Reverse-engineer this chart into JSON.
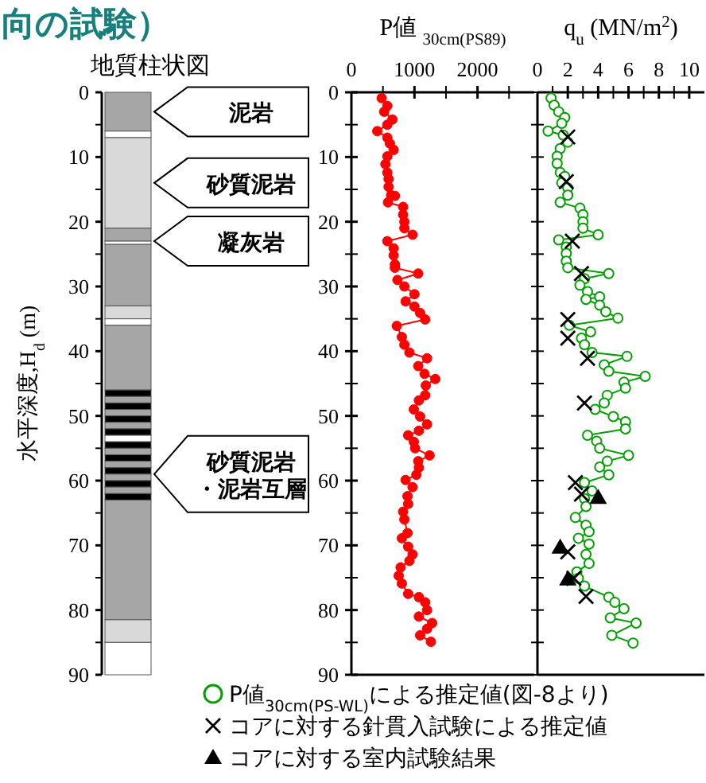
{
  "chart_data": [
    {
      "type": "bar",
      "stacked": true,
      "title": "地質柱状図",
      "ylabel": "水平深度,H$_{d}$ (m)",
      "categories": [
        null
      ],
      "ylim": [
        90,
        0
      ],
      "tick_labels": "y",
      "yticks": [
        0,
        {
          "value": 5,
          "label": null
        },
        10,
        {
          "value": 15,
          "label": null
        },
        20,
        {
          "value": 25,
          "label": null
        },
        30,
        {
          "value": 35,
          "label": null
        },
        40,
        {
          "value": 45,
          "label": null
        },
        50,
        {
          "value": 55,
          "label": null
        },
        60,
        {
          "value": 65,
          "label": null
        },
        70,
        {
          "value": 75,
          "label": null
        },
        80,
        {
          "value": 85,
          "label": null
        },
        90
      ],
      "series": [
        {
          "color": "#a6a6a6",
          "values": [
            6
          ]
        },
        {
          "color": "#ffffff",
          "values": [
            1
          ]
        },
        {
          "color": "#d9d9d9",
          "values": [
            14
          ]
        },
        {
          "color": "#a6a6a6",
          "values": [
            2
          ]
        },
        {
          "color": "#ffffff",
          "values": [
            0.5
          ]
        },
        {
          "color": "#a6a6a6",
          "values": [
            9.5
          ]
        },
        {
          "color": "#d9d9d9",
          "values": [
            2
          ]
        },
        {
          "color": "#ffffff",
          "values": [
            1
          ]
        },
        {
          "color": "#a6a6a6",
          "values": [
            10
          ]
        },
        {
          "color": "#000000",
          "values": [
            1
          ]
        },
        {
          "color": "#a6a6a6",
          "values": [
            1
          ]
        },
        {
          "color": "#000000",
          "values": [
            1
          ]
        },
        {
          "color": "#a6a6a6",
          "values": [
            1
          ]
        },
        {
          "color": "#000000",
          "values": [
            1
          ]
        },
        {
          "color": "#a6a6a6",
          "values": [
            1
          ]
        },
        {
          "color": "#000000",
          "values": [
            1
          ]
        },
        {
          "color": "#ffffff",
          "values": [
            1
          ]
        },
        {
          "color": "#000000",
          "values": [
            1
          ]
        },
        {
          "color": "#a6a6a6",
          "values": [
            1
          ]
        },
        {
          "color": "#000000",
          "values": [
            1
          ]
        },
        {
          "color": "#a6a6a6",
          "values": [
            1
          ]
        },
        {
          "color": "#000000",
          "values": [
            1
          ]
        },
        {
          "color": "#a6a6a6",
          "values": [
            1
          ]
        },
        {
          "color": "#000000",
          "values": [
            1
          ]
        },
        {
          "color": "#a6a6a6",
          "values": [
            1
          ]
        },
        {
          "color": "#000000",
          "values": [
            1
          ]
        },
        {
          "color": "#a6a6a6",
          "values": [
            18.5
          ]
        },
        {
          "color": "#d9d9d9",
          "values": [
            3.5
          ]
        },
        {
          "color": "#ffffff",
          "values": [
            5
          ]
        }
      ],
      "annotations": [
        "向の試験）",
        "泥岩",
        "砂質泥岩",
        "凝灰岩",
        "砂質泥岩・泥岩互層"
      ]
    },
    {
      "type": "line",
      "title": "P値 $_{30cm(PS89)}$",
      "xlim": [
        0,
        2900
      ],
      "ylim": [
        90,
        0
      ],
      "marker": "circle",
      "xticks": [
        0,
        {
          "value": 500,
          "label": null
        },
        1000,
        {
          "value": 1500,
          "label": null
        },
        2000,
        {
          "value": 2500,
          "label": null
        }
      ],
      "yticks": [
        0,
        {
          "value": 5,
          "label": null
        },
        10,
        {
          "value": 15,
          "label": null
        },
        20,
        {
          "value": 25,
          "label": null
        },
        30,
        {
          "value": 35,
          "label": null
        },
        40,
        {
          "value": 45,
          "label": null
        },
        50,
        {
          "value": 55,
          "label": null
        },
        60,
        {
          "value": 65,
          "label": null
        },
        70,
        {
          "value": 75,
          "label": null
        },
        80,
        {
          "value": 85,
          "label": null
        },
        90
      ],
      "series": [
        {
          "color": "#ff0000",
          "x": [
            480,
            570,
            520,
            650,
            570,
            410,
            570,
            610,
            670,
            570,
            540,
            570,
            590,
            590,
            630,
            690,
            580,
            820,
            820,
            840,
            840,
            970,
            570,
            670,
            670,
            690,
            690,
            1060,
            730,
            840,
            1000,
            860,
            1000,
            1090,
            1170,
            720,
            800,
            840,
            920,
            1200,
            1060,
            1160,
            1330,
            1180,
            1170,
            1070,
            990,
            1090,
            1200,
            1070,
            900,
            990,
            1010,
            1240,
            1060,
            1070,
            1030,
            860,
            970,
            890,
            900,
            820,
            840,
            890,
            800,
            900,
            970,
            920,
            780,
            750,
            800,
            900,
            1070,
            1170,
            1200,
            1070,
            1280,
            1200,
            1090,
            1260
          ],
          "values": [
            0.9,
            2.1,
            3,
            4.2,
            5,
            6,
            7,
            7.9,
            8.9,
            9.9,
            11.1,
            12.4,
            13.4,
            14.6,
            15.9,
            16,
            17,
            17.7,
            18.9,
            20,
            21,
            22,
            23,
            24.1,
            25.2,
            26.6,
            27.1,
            28,
            29,
            30,
            31.2,
            32.3,
            33.1,
            34.1,
            35.1,
            36.1,
            37.8,
            39,
            40.2,
            41.1,
            42.3,
            43.5,
            44.3,
            45.3,
            46.8,
            47.6,
            49,
            50.1,
            51.3,
            52.3,
            53,
            54,
            55,
            56.1,
            57,
            58,
            59.1,
            59.9,
            61,
            62.4,
            63.6,
            64.8,
            66,
            68.1,
            68.9,
            70.2,
            71.4,
            72.4,
            73.4,
            74.7,
            75.9,
            77.5,
            78,
            78.8,
            80,
            81,
            82,
            82.9,
            83.9,
            84.9
          ]
        }
      ]
    },
    {
      "type": "line",
      "title": "q$_{u}$ (MN/m$^{2}$)",
      "xlim": [
        0,
        11
      ],
      "ylim": [
        90,
        0
      ],
      "tick_labels": "x",
      "legend": "bottom",
      "xticks": [
        0,
        {
          "value": 1,
          "label": null
        },
        2,
        {
          "value": 3,
          "label": null
        },
        4,
        {
          "value": 5,
          "label": null
        },
        6,
        {
          "value": 7,
          "label": null
        },
        8,
        {
          "value": 9,
          "label": null
        },
        10
      ],
      "yticks": [
        {
          "value": 0,
          "label": null
        },
        {
          "value": 5,
          "label": null
        },
        {
          "value": 10,
          "label": null
        },
        {
          "value": 15,
          "label": null
        },
        {
          "value": 20,
          "label": null
        },
        {
          "value": 25,
          "label": null
        },
        {
          "value": 30,
          "label": null
        },
        {
          "value": 35,
          "label": null
        },
        {
          "value": 40,
          "label": null
        },
        {
          "value": 45,
          "label": null
        },
        {
          "value": 50,
          "label": null
        },
        {
          "value": 55,
          "label": null
        },
        {
          "value": 60,
          "label": null
        },
        {
          "value": 65,
          "label": null
        },
        {
          "value": 70,
          "label": null
        },
        {
          "value": 75,
          "label": null
        },
        {
          "value": 80,
          "label": null
        },
        {
          "value": 85,
          "label": null
        },
        {
          "value": 90,
          "label": null
        }
      ],
      "series": [
        {
          "name": "P値$_{30cm(PS-WL)}$による推定値(図-8より)",
          "color": "#00a000",
          "marker": "circle",
          "x": [
            0.9,
            1.1,
            1.4,
            1.8,
            1.6,
            0.7,
            1.7,
            2,
            1.5,
            1.3,
            1.3,
            1.5,
            1.8,
            1.6,
            2,
            2,
            1.5,
            2.8,
            3,
            3,
            3,
            4,
            1.4,
            1.9,
            1.9,
            1.9,
            2,
            4.7,
            3.1,
            2.8,
            3.3,
            4.1,
            3.2,
            4.1,
            4.5,
            5.3,
            2.1,
            3.5,
            2.9,
            3.1,
            3.6,
            5.9,
            4.4,
            4.7,
            7.1,
            5.7,
            5.8,
            4.6,
            4.4,
            3.8,
            5,
            5.8,
            5.8,
            3.3,
            3.9,
            4.1,
            6,
            4.6,
            4.1,
            4.7,
            3.1,
            3.6,
            3.1,
            3.2,
            2.5,
            3.2,
            3.4,
            2.7,
            3.4,
            3.2,
            3.4,
            2.6,
            2.7,
            3.1,
            4.7,
            5.1,
            5.7,
            4.8,
            6.5,
            4.9,
            6.3
          ],
          "values": [
            0.9,
            2,
            3,
            3.9,
            4.8,
            6,
            6.6,
            7.7,
            8.7,
            9.9,
            11,
            12.4,
            13,
            14,
            14.8,
            15.9,
            17,
            17.9,
            18.9,
            20,
            21,
            22,
            22.8,
            23.9,
            24.9,
            26.1,
            27.1,
            28,
            28.8,
            29.8,
            30.8,
            31.6,
            32,
            32.9,
            33.9,
            34.9,
            36,
            37,
            38,
            39,
            40.2,
            40.8,
            42.1,
            43.1,
            43.9,
            44.8,
            45.7,
            46.8,
            48,
            49,
            50.1,
            50.9,
            52,
            53,
            53.9,
            55,
            56.1,
            57,
            57.9,
            59.1,
            60.3,
            61.6,
            62.8,
            64,
            65.7,
            66.9,
            67.9,
            68.9,
            69.8,
            71.4,
            72.8,
            74.1,
            75.1,
            76.3,
            78,
            78.8,
            79.8,
            81.2,
            82,
            83.9,
            85.1
          ]
        },
        {
          "name": "コアに対する針貫入試験による推定値",
          "type": "scatter",
          "marker": "cross",
          "color": "#000000",
          "x": [
            2,
            1.9,
            2.3,
            2.9,
            2,
            2,
            3.3,
            3.1,
            2.5,
            2.9,
            2,
            2.4,
            3.2
          ],
          "values": [
            6.9,
            13.8,
            23,
            28,
            35.1,
            38,
            41.1,
            48,
            60.3,
            62.1,
            71,
            75.1,
            77.9
          ]
        },
        {
          "name": "コアに対する室内試験結果",
          "type": "scatter",
          "marker": "triangle",
          "color": "#000000",
          "x": [
            4,
            1.5,
            2
          ],
          "values": [
            62.6,
            70.3,
            75.2
          ]
        }
      ]
    }
  ]
}
